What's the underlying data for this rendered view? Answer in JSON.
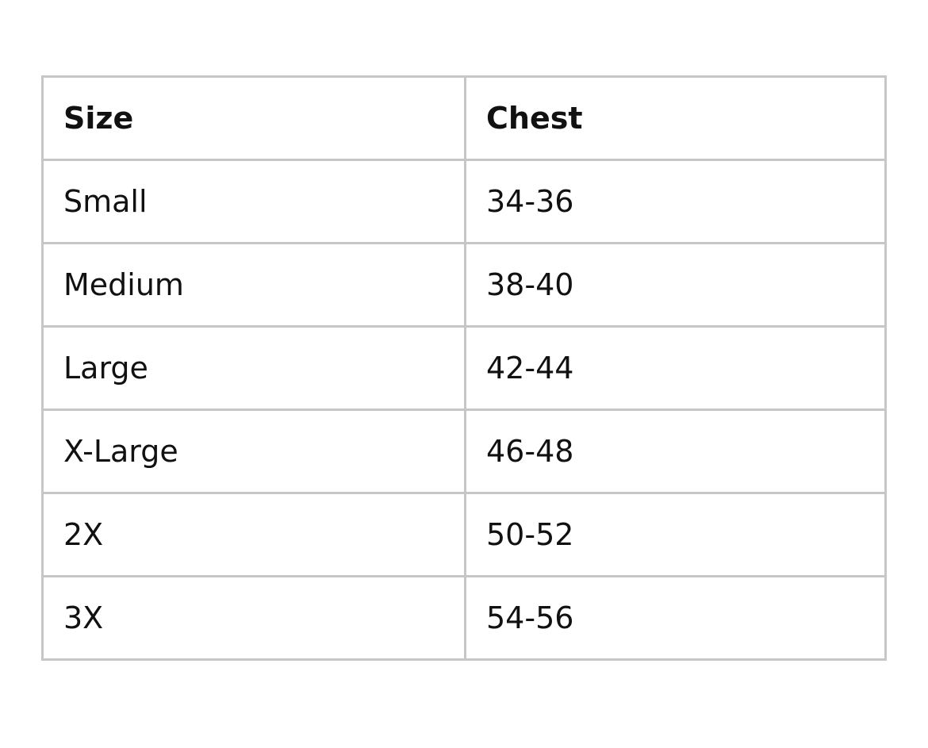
{
  "table": {
    "headers": [
      "Size",
      "Chest"
    ],
    "rows": [
      [
        "Small",
        "34-36"
      ],
      [
        "Medium",
        "38-40"
      ],
      [
        "Large",
        "42-44"
      ],
      [
        "X-Large",
        "46-48"
      ],
      [
        "2X",
        "50-52"
      ],
      [
        "3X",
        "54-56"
      ]
    ]
  }
}
